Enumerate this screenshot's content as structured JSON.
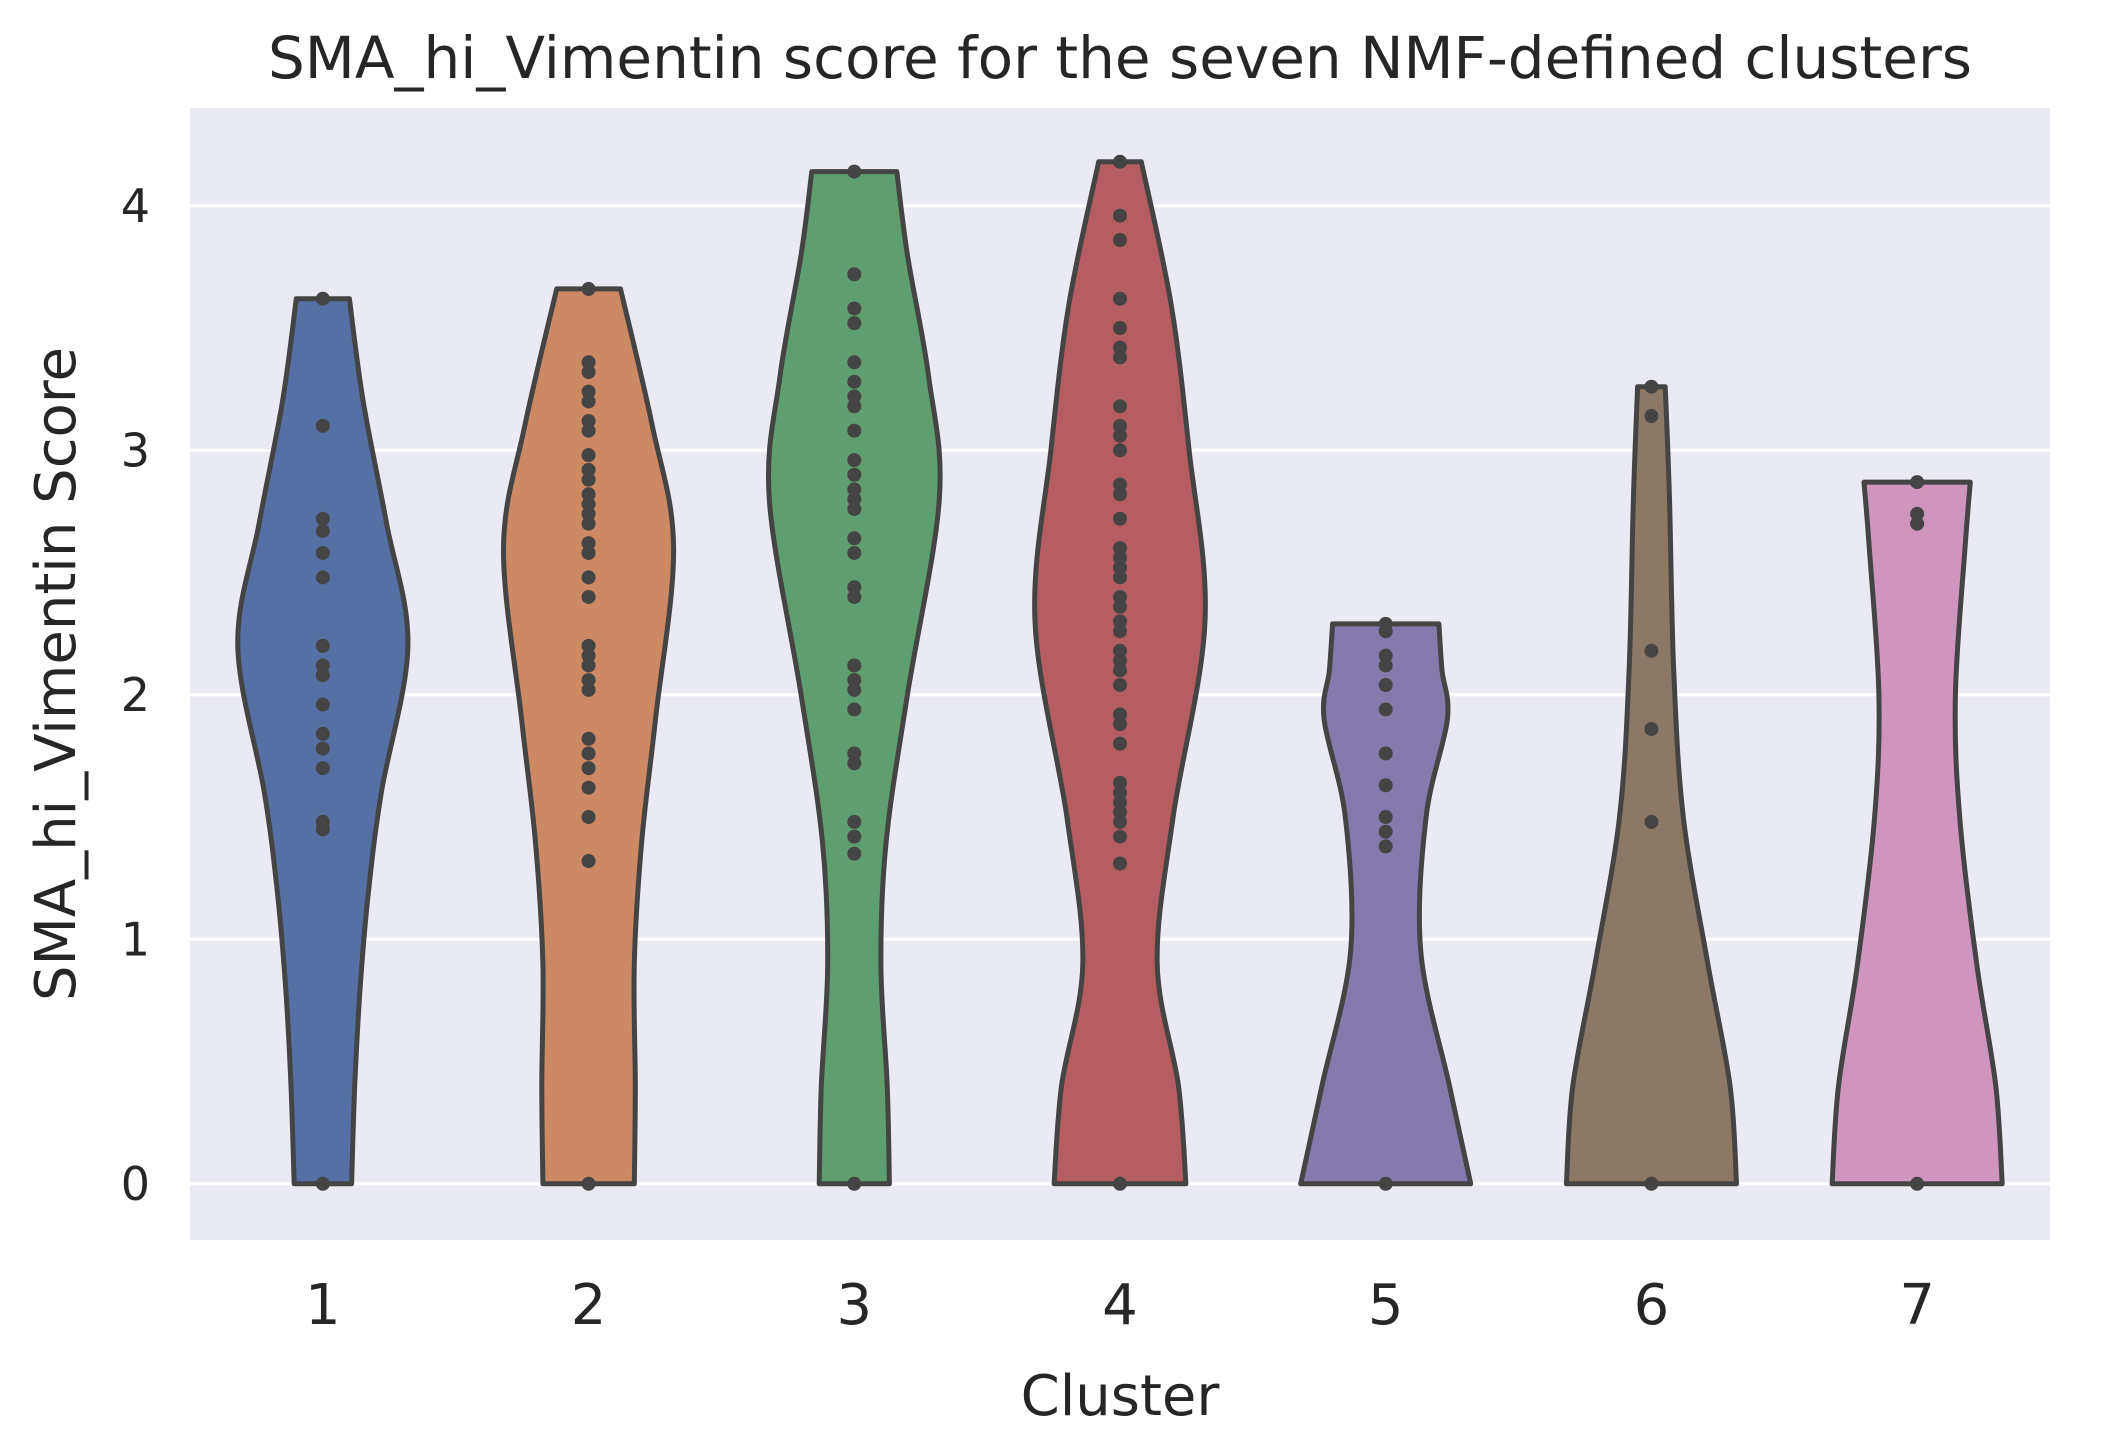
{
  "chart_data": {
    "type": "violin",
    "title": "SMA_hi_Vimentin score for the seven NMF-defined clusters",
    "xlabel": "Cluster",
    "ylabel": "SMA_hi_Vimentin Score",
    "ylim": [
      -0.23,
      4.4
    ],
    "yticks": [
      0,
      1,
      2,
      3,
      4
    ],
    "grid": true,
    "categories": [
      "1",
      "2",
      "3",
      "4",
      "5",
      "6",
      "7"
    ],
    "series": [
      {
        "category": "1",
        "color": "#5470a5",
        "profile": [
          [
            0,
            0.27
          ],
          [
            0.4,
            0.3
          ],
          [
            0.8,
            0.35
          ],
          [
            1.2,
            0.43
          ],
          [
            1.6,
            0.55
          ],
          [
            2.2,
            0.8
          ],
          [
            2.7,
            0.6
          ],
          [
            3.2,
            0.38
          ],
          [
            3.62,
            0.25
          ]
        ],
        "points": [
          0,
          1.45,
          1.48,
          1.7,
          1.78,
          1.84,
          1.96,
          2.08,
          2.12,
          2.2,
          2.48,
          2.58,
          2.67,
          2.72,
          3.1,
          3.62
        ]
      },
      {
        "category": "2",
        "color": "#cc8963",
        "profile": [
          [
            0,
            0.43
          ],
          [
            0.4,
            0.44
          ],
          [
            0.9,
            0.43
          ],
          [
            1.4,
            0.5
          ],
          [
            1.9,
            0.63
          ],
          [
            2.6,
            0.8
          ],
          [
            3.1,
            0.6
          ],
          [
            3.66,
            0.3
          ]
        ],
        "points": [
          0,
          1.32,
          1.5,
          1.62,
          1.7,
          1.76,
          1.82,
          2.02,
          2.06,
          2.12,
          2.16,
          2.2,
          2.4,
          2.48,
          2.58,
          2.62,
          2.7,
          2.74,
          2.78,
          2.82,
          2.88,
          2.92,
          2.98,
          3.08,
          3.12,
          3.2,
          3.24,
          3.32,
          3.36,
          3.66
        ]
      },
      {
        "category": "3",
        "color": "#5f9e6e",
        "profile": [
          [
            0,
            0.33
          ],
          [
            0.4,
            0.31
          ],
          [
            0.9,
            0.25
          ],
          [
            1.4,
            0.3
          ],
          [
            2,
            0.5
          ],
          [
            2.8,
            0.8
          ],
          [
            3.3,
            0.7
          ],
          [
            3.8,
            0.5
          ],
          [
            4.14,
            0.4
          ]
        ],
        "points": [
          0,
          1.35,
          1.42,
          1.48,
          1.72,
          1.76,
          1.94,
          2.02,
          2.06,
          2.12,
          2.4,
          2.44,
          2.58,
          2.64,
          2.76,
          2.8,
          2.84,
          2.9,
          2.96,
          3.08,
          3.18,
          3.22,
          3.28,
          3.36,
          3.52,
          3.58,
          3.72,
          4.14
        ]
      },
      {
        "category": "4",
        "color": "#b55d60",
        "profile": [
          [
            0,
            0.62
          ],
          [
            0.4,
            0.55
          ],
          [
            0.9,
            0.35
          ],
          [
            1.5,
            0.5
          ],
          [
            2.3,
            0.8
          ],
          [
            3.0,
            0.65
          ],
          [
            3.6,
            0.48
          ],
          [
            4.18,
            0.2
          ]
        ],
        "points": [
          0,
          1.31,
          1.42,
          1.48,
          1.52,
          1.56,
          1.6,
          1.64,
          1.8,
          1.88,
          1.92,
          2.04,
          2.1,
          2.14,
          2.18,
          2.26,
          2.3,
          2.36,
          2.4,
          2.48,
          2.52,
          2.56,
          2.6,
          2.72,
          2.82,
          2.86,
          3.0,
          3.06,
          3.1,
          3.18,
          3.38,
          3.42,
          3.5,
          3.62,
          3.86,
          3.96,
          4.18
        ]
      },
      {
        "category": "5",
        "color": "#857aab",
        "profile": [
          [
            0,
            0.8
          ],
          [
            0.4,
            0.6
          ],
          [
            0.95,
            0.33
          ],
          [
            1.5,
            0.38
          ],
          [
            1.9,
            0.58
          ],
          [
            2.1,
            0.53
          ],
          [
            2.29,
            0.5
          ]
        ],
        "points": [
          0,
          1.38,
          1.44,
          1.5,
          1.63,
          1.76,
          1.94,
          2.04,
          2.12,
          2.16,
          2.26,
          2.29
        ]
      },
      {
        "category": "6",
        "color": "#8d7866",
        "profile": [
          [
            0,
            0.8
          ],
          [
            0.4,
            0.74
          ],
          [
            0.9,
            0.53
          ],
          [
            1.5,
            0.3
          ],
          [
            2.1,
            0.21
          ],
          [
            2.8,
            0.17
          ],
          [
            3.26,
            0.13
          ]
        ],
        "points": [
          0,
          1.48,
          1.86,
          2.18,
          3.14,
          3.26
        ]
      },
      {
        "category": "7",
        "color": "#d095bf",
        "profile": [
          [
            0,
            0.8
          ],
          [
            0.4,
            0.74
          ],
          [
            0.9,
            0.56
          ],
          [
            1.5,
            0.4
          ],
          [
            2.0,
            0.36
          ],
          [
            2.6,
            0.45
          ],
          [
            2.87,
            0.5
          ]
        ],
        "points": [
          0,
          2.7,
          2.74,
          2.87
        ]
      }
    ]
  }
}
